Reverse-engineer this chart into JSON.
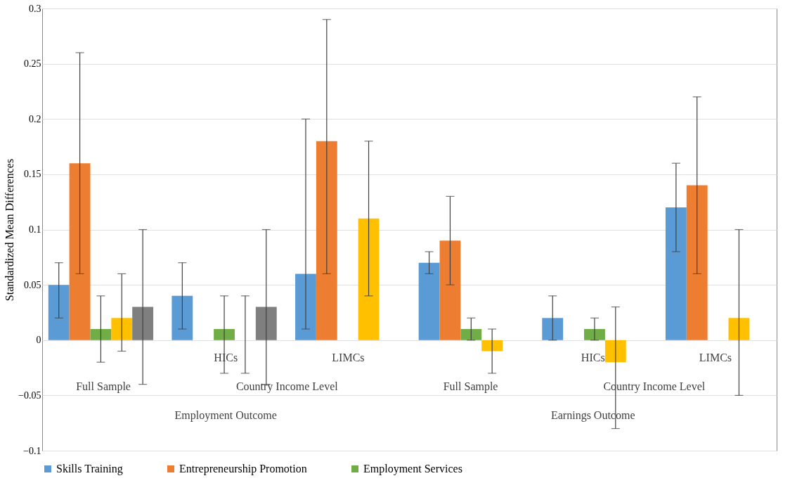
{
  "chart_data": {
    "type": "bar",
    "ylabel": "Standardized Mean Differences",
    "categories": [
      "Full Sample",
      "HICs",
      "LIMCs",
      "Full Sample",
      "HICs",
      "LIMCs"
    ],
    "annotations": [
      "Country Income Level",
      "Country Income Level",
      "Employment Outcome",
      "Earnings Outcome"
    ],
    "series": [
      {
        "name": "Skills Training",
        "color": "#5b9bd5",
        "values": [
          0.05,
          0.04,
          0.06,
          0.07,
          0.02,
          0.12
        ],
        "errors": [
          [
            0.02,
            0.07
          ],
          [
            0.01,
            0.07
          ],
          [
            0.01,
            0.2
          ],
          [
            0.06,
            0.08
          ],
          [
            0.0,
            0.04
          ],
          [
            0.08,
            0.16
          ]
        ]
      },
      {
        "name": "Entrepreneurship Promotion",
        "color": "#ed7d31",
        "values": [
          0.16,
          null,
          0.18,
          0.09,
          null,
          0.14
        ],
        "errors": [
          [
            0.06,
            0.26
          ],
          null,
          [
            0.06,
            0.29
          ],
          [
            0.05,
            0.13
          ],
          null,
          [
            0.06,
            0.22
          ]
        ]
      },
      {
        "name": "Employment Services",
        "color": "#70ad47",
        "values": [
          0.01,
          0.01,
          null,
          0.01,
          0.01,
          null
        ],
        "errors": [
          [
            -0.02,
            0.04
          ],
          [
            -0.03,
            0.04
          ],
          null,
          [
            0.0,
            0.02
          ],
          [
            0.0,
            0.02
          ],
          null
        ]
      },
      {
        "color": "#ffc000",
        "values": [
          0.02,
          0,
          0.11,
          -0.01,
          -0.02,
          0.02
        ],
        "errors": [
          [
            -0.01,
            0.06
          ],
          [
            -0.03,
            0.04
          ],
          [
            0.04,
            0.18
          ],
          [
            -0.03,
            0.01
          ],
          [
            -0.08,
            0.03
          ],
          [
            -0.05,
            0.1
          ]
        ]
      },
      {
        "color": "#7f7f7f",
        "values": [
          0.03,
          0.03,
          null,
          null,
          null,
          null
        ],
        "errors": [
          [
            -0.04,
            0.1
          ],
          [
            -0.04,
            0.1
          ],
          null,
          null,
          null,
          null
        ]
      }
    ],
    "ylim": [
      -0.1,
      0.3
    ],
    "yticks": [
      -0.1,
      -0.05,
      0,
      0.05,
      0.1,
      0.15,
      0.2,
      0.25,
      0.3
    ],
    "grid": "y",
    "legend": "bottom"
  }
}
